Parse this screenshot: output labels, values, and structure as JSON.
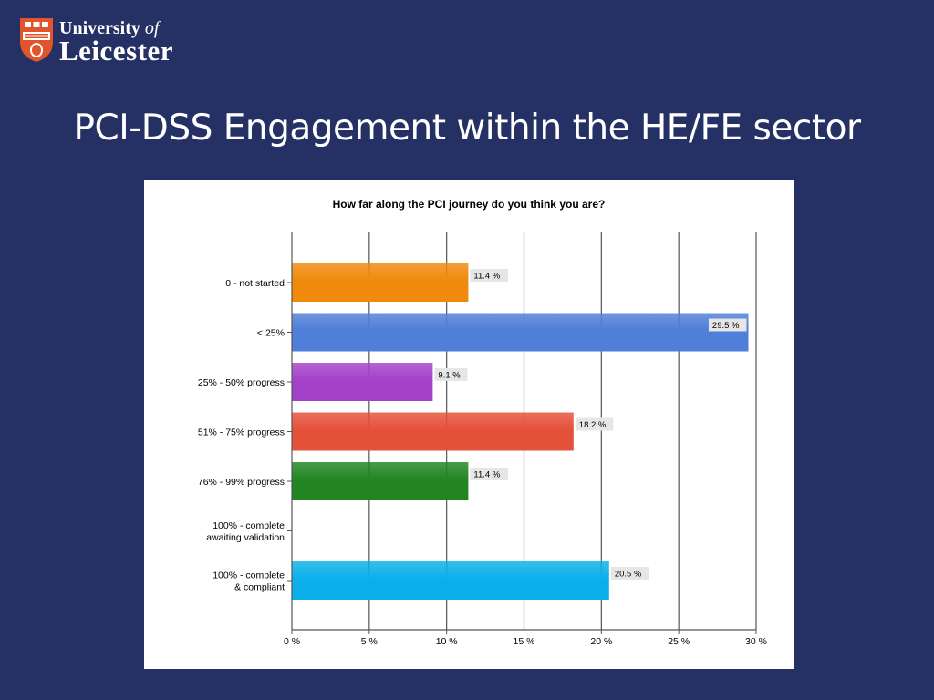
{
  "logo": {
    "line1": "University",
    "line1_of": "of",
    "line2": "Leicester",
    "crest_colors": {
      "shield": "#e2552a",
      "accent": "#ffffff"
    }
  },
  "slide": {
    "title": "PCI-DSS Engagement within the HE/FE sector",
    "background": "#253165"
  },
  "chart_data": {
    "type": "bar",
    "orientation": "horizontal",
    "title": "How far along the PCI journey do you think you are?",
    "categories": [
      [
        "0 - not started"
      ],
      [
        "< 25%"
      ],
      [
        "25% - 50% progress"
      ],
      [
        "51% - 75% progress"
      ],
      [
        "76% - 99% progress"
      ],
      [
        "100% - complete",
        "awaiting validation"
      ],
      [
        "100% - complete",
        "& compliant"
      ]
    ],
    "values": [
      11.4,
      29.5,
      9.1,
      18.2,
      11.4,
      0,
      20.5
    ],
    "value_labels": [
      "11.4 %",
      "29.5 %",
      "9.1 %",
      "18.2 %",
      "11.4 %",
      "",
      "20.5 %"
    ],
    "colors": [
      "#f08a0c",
      "#4f7fd8",
      "#a342c8",
      "#e4513a",
      "#228522",
      "#ffffff",
      "#0bb0ea"
    ],
    "xticks": [
      0,
      5,
      10,
      15,
      20,
      25,
      30
    ],
    "xtick_labels": [
      "0 %",
      "5 %",
      "10 %",
      "15 %",
      "20 %",
      "25 %",
      "30 %"
    ],
    "xlim": [
      0,
      30
    ],
    "grid": true,
    "legend": "none"
  }
}
